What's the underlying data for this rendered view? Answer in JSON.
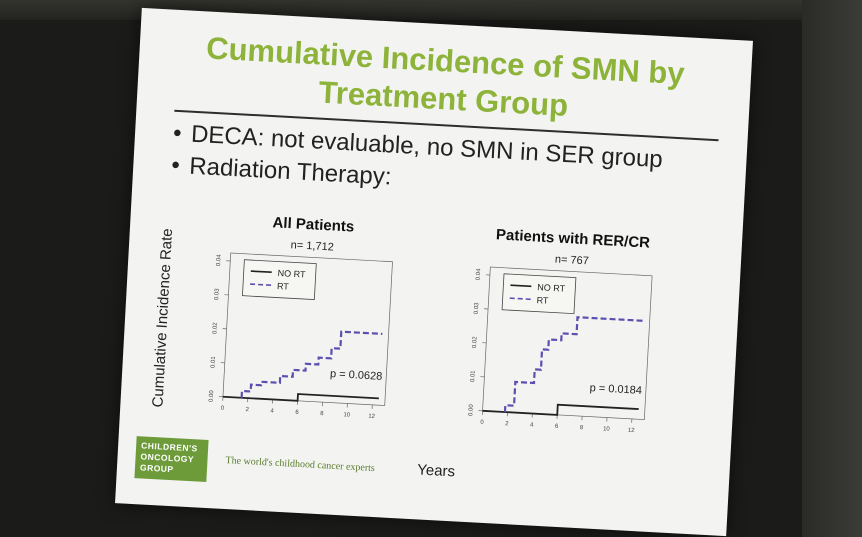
{
  "slide": {
    "title_line1": "Cumulative Incidence of SMN by",
    "title_line2": "Treatment Group",
    "bullets": [
      "DECA: not evaluable, no SMN in SER group",
      "Radiation Therapy:"
    ],
    "y_axis_title": "Cumulative Incidence Rate",
    "x_axis_title": "Years",
    "logo_text": [
      "CHILDREN'S",
      "ONCOLOGY",
      "GROUP"
    ],
    "tagline": "The world's childhood cancer experts"
  },
  "colors": {
    "title": "#8db33a",
    "rt": "#5b4fb0",
    "no_rt": "#222222",
    "logo": "#6e9b3a"
  },
  "chart_data": [
    {
      "type": "line",
      "step": true,
      "title": "All Patients",
      "subtitle": "n= 1,712",
      "xlim": [
        0,
        13
      ],
      "ylim": [
        0,
        0.04
      ],
      "x_ticks": [
        "0",
        "2",
        "4",
        "6",
        "8",
        "10",
        "12"
      ],
      "y_ticks": [
        "0.00",
        "0.01",
        "0.02",
        "0.03",
        "0.04"
      ],
      "legend": "top-left",
      "annotation": "p = 0.0628",
      "series": [
        {
          "name": "NO RT",
          "style": "solid",
          "x": [
            0,
            6,
            6,
            12.5
          ],
          "y": [
            0,
            0,
            0.002,
            0.002
          ]
        },
        {
          "name": "RT",
          "style": "dashed",
          "x": [
            1.5,
            1.5,
            2.2,
            2.2,
            3,
            3,
            4.5,
            4.5,
            5.5,
            5.5,
            6.5,
            6.5,
            7.5,
            7.5,
            8.5,
            8.5,
            9.2,
            9.2,
            12.5
          ],
          "y": [
            0,
            0.002,
            0.002,
            0.004,
            0.004,
            0.005,
            0.005,
            0.007,
            0.007,
            0.009,
            0.009,
            0.011,
            0.011,
            0.013,
            0.013,
            0.016,
            0.016,
            0.021,
            0.021
          ]
        }
      ]
    },
    {
      "type": "line",
      "step": true,
      "title": "Patients with RER/CR",
      "subtitle": "n= 767",
      "xlim": [
        0,
        13
      ],
      "ylim": [
        0,
        0.04
      ],
      "x_ticks": [
        "0",
        "2",
        "4",
        "6",
        "8",
        "10",
        "12"
      ],
      "y_ticks": [
        "0.00",
        "0.01",
        "0.02",
        "0.03",
        "0.04"
      ],
      "legend": "top-left",
      "annotation": "p = 0.0184",
      "series": [
        {
          "name": "NO RT",
          "style": "solid",
          "x": [
            0,
            6,
            6,
            12.5
          ],
          "y": [
            0,
            0,
            0.003,
            0.003
          ]
        },
        {
          "name": "RT",
          "style": "dashed",
          "x": [
            1.8,
            1.8,
            2.5,
            2.5,
            4,
            4,
            4.5,
            4.5,
            5,
            5,
            6,
            6,
            7.2,
            7.2,
            12.5
          ],
          "y": [
            0,
            0.002,
            0.002,
            0.009,
            0.009,
            0.013,
            0.013,
            0.019,
            0.019,
            0.022,
            0.022,
            0.024,
            0.024,
            0.029,
            0.029
          ]
        }
      ]
    }
  ]
}
